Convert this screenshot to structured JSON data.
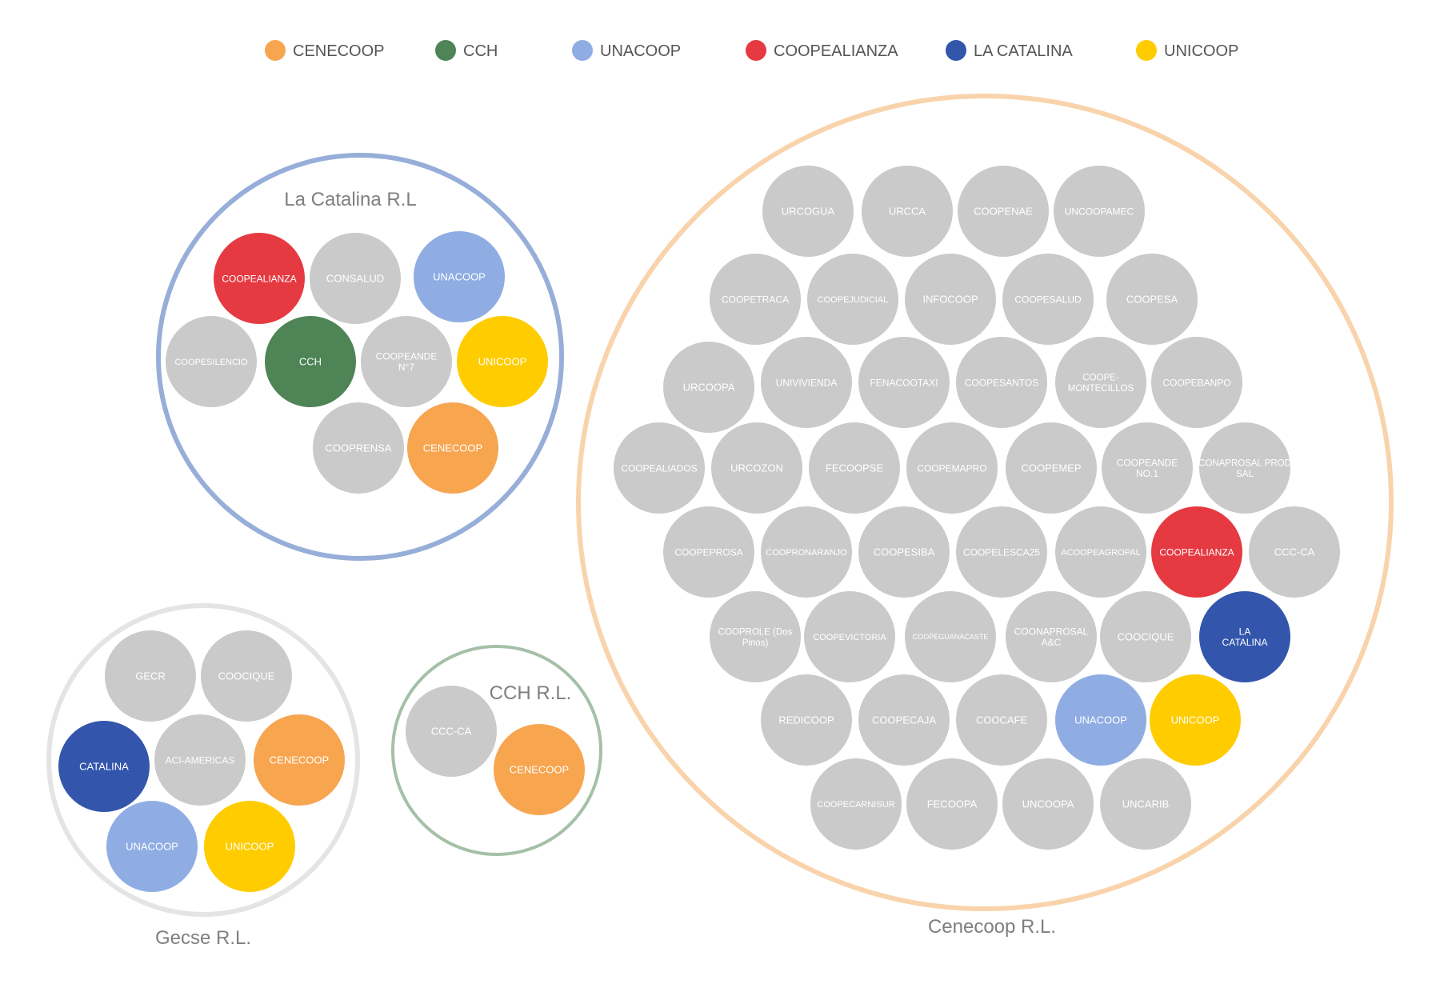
{
  "colors": {
    "CENECOOP": "#F7A54F",
    "CCH": "#4E8456",
    "UNACOOP": "#8FADE3",
    "COOPEALIANZA": "#E63A42",
    "LA CATALINA": "#3356AC",
    "UNICOOP": "#FFCC00",
    "other": "#CACACA"
  },
  "legend": [
    {
      "label": "CENECOOP",
      "color": "#F7A54F"
    },
    {
      "label": "CCH",
      "color": "#4E8456"
    },
    {
      "label": "UNACOOP",
      "color": "#8FADE3"
    },
    {
      "label": "COOPEALIANZA",
      "color": "#E63A42"
    },
    {
      "label": "LA CATALINA",
      "color": "#3356AC"
    },
    {
      "label": "UNICOOP",
      "color": "#FFCC00"
    }
  ],
  "groups": [
    {
      "title": "La Catalina R.L",
      "ring_color": "#97AED9",
      "members": [
        {
          "name": "COOPEALIANZA",
          "category": "COOPEALIANZA"
        },
        {
          "name": "CONSALUD",
          "category": "other"
        },
        {
          "name": "UNACOOP",
          "category": "UNACOOP"
        },
        {
          "name": "COOPESILENCIO",
          "category": "other"
        },
        {
          "name": "CCH",
          "category": "CCH"
        },
        {
          "name": "COOPEANDE N°7",
          "category": "other"
        },
        {
          "name": "UNICOOP",
          "category": "UNICOOP"
        },
        {
          "name": "COOPRENSA",
          "category": "other"
        },
        {
          "name": "CENECOOP",
          "category": "CENECOOP"
        }
      ]
    },
    {
      "title": "Gecse R.L.",
      "ring_color": "#E4E4E4",
      "members": [
        {
          "name": "GECR",
          "category": "other"
        },
        {
          "name": "COOCIQUE",
          "category": "other"
        },
        {
          "name": "CATALINA",
          "category": "LA CATALINA"
        },
        {
          "name": "ACI-AMERICAS",
          "category": "other"
        },
        {
          "name": "CENECOOP",
          "category": "CENECOOP"
        },
        {
          "name": "UNACOOP",
          "category": "UNACOOP"
        },
        {
          "name": "UNICOOP",
          "category": "UNICOOP"
        }
      ]
    },
    {
      "title": "CCH R.L.",
      "ring_color": "#A5C0A8",
      "members": [
        {
          "name": "CCC-CA",
          "category": "other"
        },
        {
          "name": "CENECOOP",
          "category": "CENECOOP"
        }
      ]
    },
    {
      "title": "Cenecoop R.L.",
      "ring_color": "#F9D3AB",
      "members": [
        {
          "name": "URCOGUA",
          "category": "other"
        },
        {
          "name": "URCCA",
          "category": "other"
        },
        {
          "name": "COOPENAE",
          "category": "other"
        },
        {
          "name": "UNCOOPAMEC",
          "category": "other"
        },
        {
          "name": "COOPETRACA",
          "category": "other"
        },
        {
          "name": "COOPEJUDICIAL",
          "category": "other"
        },
        {
          "name": "INFOCOOP",
          "category": "other"
        },
        {
          "name": "COOPESALUD",
          "category": "other"
        },
        {
          "name": "COOPESA",
          "category": "other"
        },
        {
          "name": "URCOOPA",
          "category": "other"
        },
        {
          "name": "UNIVIVIENDA",
          "category": "other"
        },
        {
          "name": "FENACOOTAXI",
          "category": "other"
        },
        {
          "name": "COOPESANTOS",
          "category": "other"
        },
        {
          "name": "COOPE- MONTECILLOS",
          "category": "other"
        },
        {
          "name": "COOPEBANPO",
          "category": "other"
        },
        {
          "name": "COOPEALIADOS",
          "category": "other"
        },
        {
          "name": "URCOZON",
          "category": "other"
        },
        {
          "name": "FECOOPSE",
          "category": "other"
        },
        {
          "name": "COOPEMAPRO",
          "category": "other"
        },
        {
          "name": "COOPEMEP",
          "category": "other"
        },
        {
          "name": "COOPEANDE NO.1",
          "category": "other"
        },
        {
          "name": "CONAPROSAL PROD SAL",
          "category": "other"
        },
        {
          "name": "COOPEPROSA",
          "category": "other"
        },
        {
          "name": "COOPRONARANJO",
          "category": "other"
        },
        {
          "name": "COOPESIBA",
          "category": "other"
        },
        {
          "name": "COOPELESCA25",
          "category": "other"
        },
        {
          "name": "ACOOPEAGROPAL",
          "category": "other"
        },
        {
          "name": "COOPEALIANZA",
          "category": "COOPEALIANZA"
        },
        {
          "name": "CCC-CA",
          "category": "other"
        },
        {
          "name": "COOPROLE (Dos Pinos)",
          "category": "other"
        },
        {
          "name": "COOPEVICTORIA",
          "category": "other"
        },
        {
          "name": "COOPEGUANACASTE",
          "category": "other"
        },
        {
          "name": "COONAPROSAL A&C",
          "category": "other"
        },
        {
          "name": "COOCIQUE",
          "category": "other"
        },
        {
          "name": "LA CATALINA",
          "category": "LA CATALINA"
        },
        {
          "name": "REDICOOP",
          "category": "other"
        },
        {
          "name": "COOPECAJA",
          "category": "other"
        },
        {
          "name": "COOCAFE",
          "category": "other"
        },
        {
          "name": "UNACOOP",
          "category": "UNACOOP"
        },
        {
          "name": "UNICOOP",
          "category": "UNICOOP"
        },
        {
          "name": "COOPECARNISUR",
          "category": "other"
        },
        {
          "name": "FECOOPA",
          "category": "other"
        },
        {
          "name": "UNCOOPA",
          "category": "other"
        },
        {
          "name": "UNCARIB",
          "category": "other"
        }
      ]
    }
  ]
}
